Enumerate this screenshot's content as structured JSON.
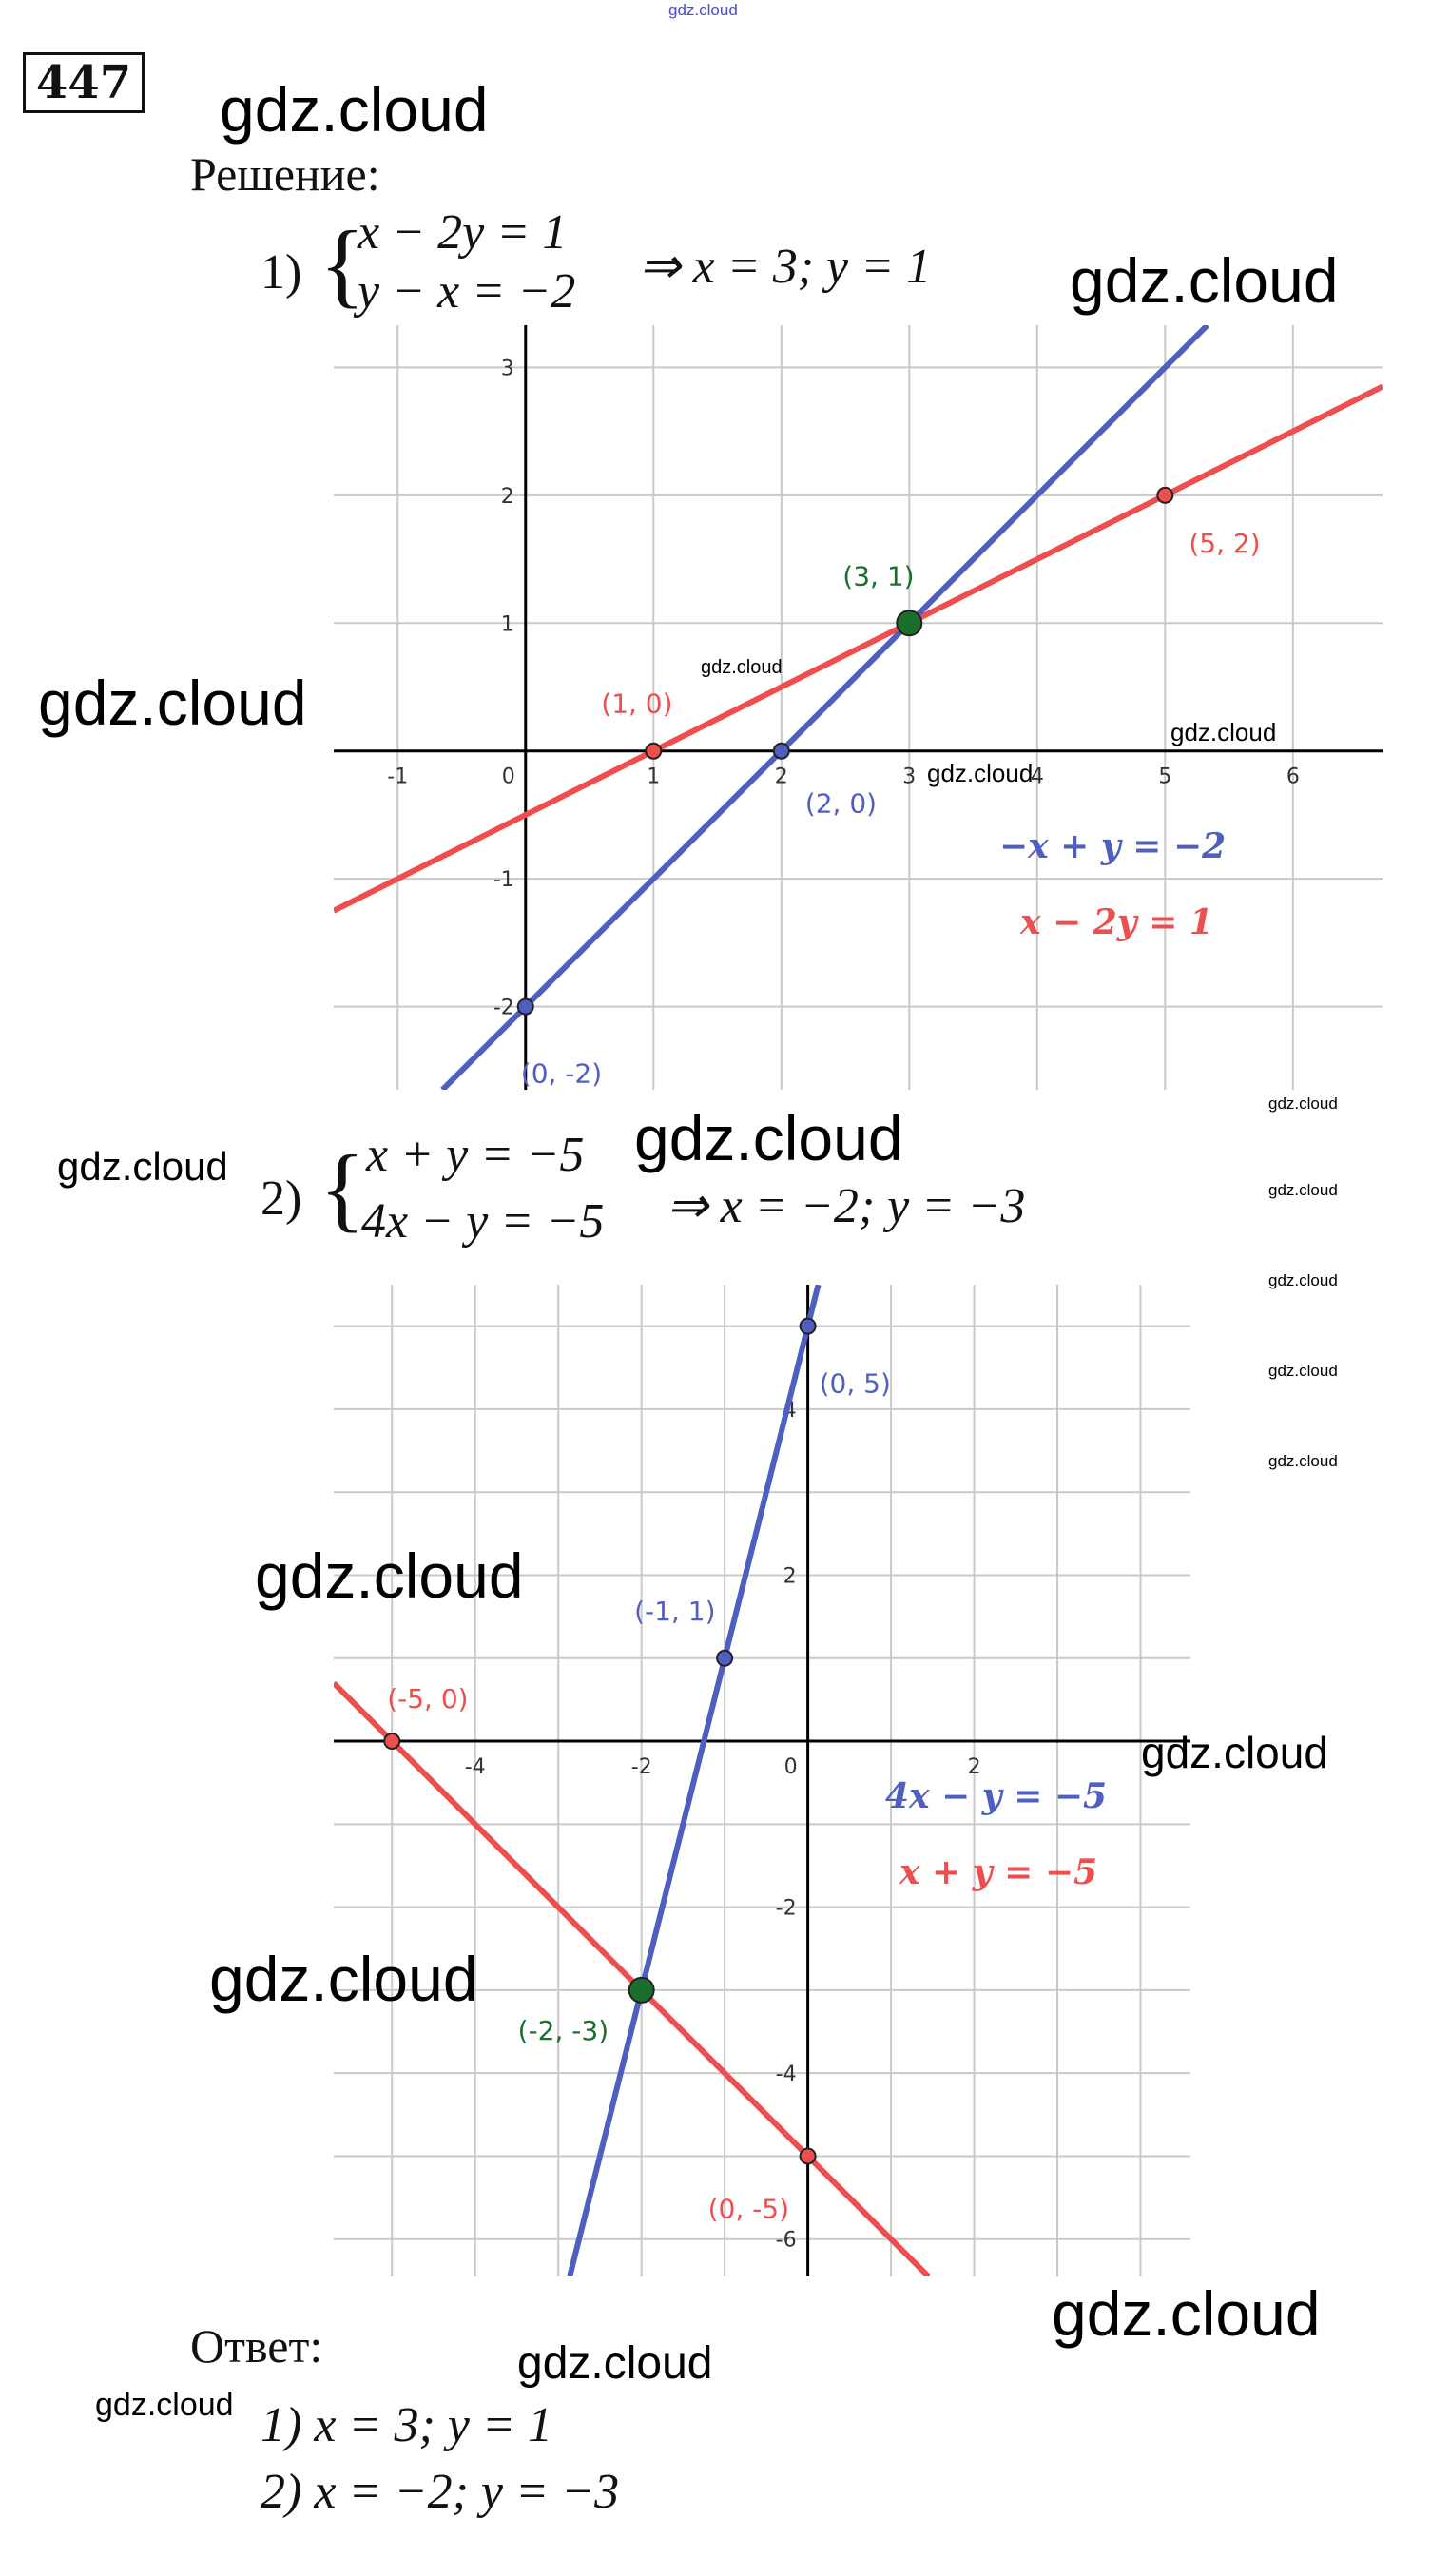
{
  "problem_number": "447",
  "solution_heading": "Решение:",
  "part1": {
    "label": "1)",
    "eq1": "x − 2y = 1",
    "eq2": "y − x = −2",
    "result": "⇒ x = 3; y = 1"
  },
  "part2": {
    "label": "2)",
    "eq1": "x + y = −5",
    "eq2": "4x − y = −5",
    "result": "⇒ x = −2; y = −3"
  },
  "answer": {
    "heading": "Ответ:",
    "items": [
      "1)  x = 3; y = 1",
      "2)  x = −2; y = −3"
    ]
  },
  "watermarks": [
    "gdz.cloud",
    "gdz.cloud",
    "gdz.cloud",
    "gdz.cloud",
    "gdz.cloud",
    "gdz.cloud",
    "gdz.cloud",
    "gdz.cloud",
    "gdz.cloud",
    "gdz.cloud",
    "gdz.cloud",
    "gdz.cloud",
    "gdz.cloud",
    "gdz.cloud",
    "gdz.cloud",
    "gdz.cloud",
    "gdz.cloud",
    "gdz.cloud",
    "gdz.cloud",
    "gdz.cloud"
  ],
  "colors": {
    "red": "#ee4e4e",
    "blue": "#4f5fbf",
    "green": "#1b6e2c",
    "grid": "#c9c9c9"
  },
  "chart_data": [
    {
      "type": "line",
      "xlim": [
        -1.5,
        6.7
      ],
      "ylim": [
        -2.65,
        3.33
      ],
      "grid": true,
      "x_ticks": [
        -1,
        0,
        1,
        2,
        3,
        4,
        5,
        6
      ],
      "y_ticks": [
        -2,
        -1,
        1,
        2,
        3
      ],
      "series": [
        {
          "name": "x − 2y = 1",
          "legend": "x − 2y = 1",
          "color": "#ee4e4e",
          "slope": 0.5,
          "intercept": -0.5
        },
        {
          "name": "−x + y = −2",
          "legend": "−x + y = −2",
          "color": "#4f5fbf",
          "slope": 1,
          "intercept": -2
        }
      ],
      "points": [
        {
          "x": 1,
          "y": 0,
          "label": "(1, 0)",
          "color": "#ee4e4e"
        },
        {
          "x": 5,
          "y": 2,
          "label": "(5, 2)",
          "color": "#ee4e4e"
        },
        {
          "x": 2,
          "y": 0,
          "label": "(2, 0)",
          "color": "#4f5fbf"
        },
        {
          "x": 0,
          "y": -2,
          "label": "(0, -2)",
          "color": "#4f5fbf"
        },
        {
          "x": 3,
          "y": 1,
          "label": "(3, 1)",
          "color": "#1b6e2c",
          "intersection": true
        }
      ]
    },
    {
      "type": "line",
      "xlim": [
        -5.7,
        4.6
      ],
      "ylim": [
        -6.45,
        5.5
      ],
      "grid": true,
      "x_ticks": [
        -4,
        -2,
        0,
        2
      ],
      "y_ticks": [
        -6,
        -4,
        -2,
        2,
        4
      ],
      "series": [
        {
          "name": "x + y = −5",
          "legend": "x + y = −5",
          "color": "#ee4e4e",
          "slope": -1,
          "intercept": -5
        },
        {
          "name": "4x − y = −5",
          "legend": "4x − y = −5",
          "color": "#4f5fbf",
          "slope": 4,
          "intercept": 5
        }
      ],
      "points": [
        {
          "x": -5,
          "y": 0,
          "label": "(-5, 0)",
          "color": "#ee4e4e"
        },
        {
          "x": 0,
          "y": -5,
          "label": "(0, -5)",
          "color": "#ee4e4e"
        },
        {
          "x": -1,
          "y": 1,
          "label": "(-1, 1)",
          "color": "#4f5fbf"
        },
        {
          "x": 0,
          "y": 5,
          "label": "(0, 5)",
          "color": "#4f5fbf"
        },
        {
          "x": -2,
          "y": -3,
          "label": "(-2, -3)",
          "color": "#1b6e2c",
          "intersection": true
        }
      ]
    }
  ]
}
